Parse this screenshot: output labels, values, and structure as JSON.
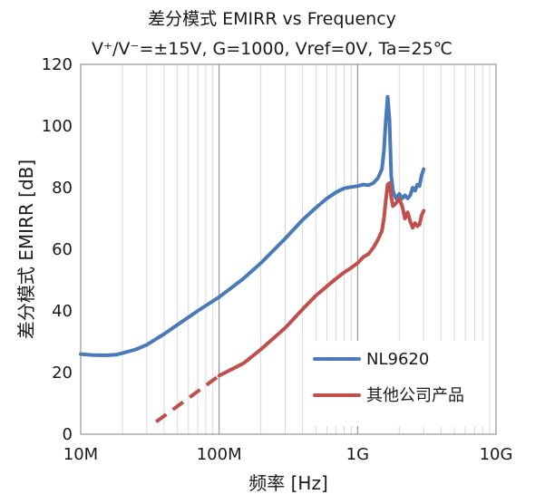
{
  "chart_data": {
    "type": "line",
    "title": "差分模式 EMIRR vs Frequency",
    "subtitle": "V⁺/V⁻=±15V, G=1000, Vref=0V, Ta=25℃",
    "xlabel": "频率 [Hz]",
    "ylabel": "差分模式 EMIRR [dB]",
    "xscale": "log",
    "xlim": [
      10000000,
      10000000000
    ],
    "ylim": [
      0,
      120
    ],
    "x_tick_labels": [
      "10M",
      "100M",
      "1G",
      "10G"
    ],
    "y_tick_labels": [
      "0",
      "20",
      "40",
      "60",
      "80",
      "100",
      "120"
    ],
    "grid": true,
    "legend_position": "bottom-right",
    "colors": {
      "series_1": "#4a7ab8",
      "series_2": "#c0504d",
      "grid_major": "#7f7f7f",
      "grid_minor": "#d9d9d9"
    },
    "series": [
      {
        "name": "NL9620",
        "style": "solid",
        "x": [
          10000000,
          12000000,
          15000000,
          18000000,
          20000000,
          25000000,
          30000000,
          40000000,
          50000000,
          70000000,
          100000000,
          150000000,
          200000000,
          300000000,
          400000000,
          500000000,
          600000000,
          700000000,
          800000000,
          900000000,
          1000000000,
          1100000000,
          1200000000,
          1300000000,
          1400000000,
          1500000000,
          1550000000,
          1600000000,
          1650000000,
          1700000000,
          1750000000,
          1800000000,
          1850000000,
          1900000000,
          2000000000,
          2100000000,
          2200000000,
          2300000000,
          2400000000,
          2500000000,
          2600000000,
          2700000000,
          2800000000,
          2900000000,
          3000000000
        ],
        "values": [
          26,
          25.7,
          25.6,
          25.8,
          26.3,
          27.5,
          29,
          32.5,
          35.5,
          40,
          44.5,
          50.5,
          55.5,
          63.5,
          69.5,
          73.5,
          76.5,
          78.5,
          79.8,
          80.2,
          80.5,
          81,
          80.8,
          81.5,
          83,
          86,
          92,
          102,
          109.5,
          102,
          84,
          79,
          77.5,
          76.5,
          78,
          76.5,
          77.5,
          76.5,
          77.5,
          80,
          79,
          81,
          80.5,
          84,
          86
        ]
      },
      {
        "name": "其他公司产品",
        "style": "solid",
        "x": [
          100000000,
          150000000,
          200000000,
          300000000,
          400000000,
          500000000,
          600000000,
          700000000,
          800000000,
          900000000,
          1000000000,
          1100000000,
          1200000000,
          1300000000,
          1400000000,
          1500000000,
          1550000000,
          1600000000,
          1650000000,
          1700000000,
          1750000000,
          1800000000,
          1900000000,
          2000000000,
          2100000000,
          2200000000,
          2300000000,
          2400000000,
          2500000000,
          2600000000,
          2700000000,
          2800000000,
          2900000000,
          3000000000
        ],
        "values": [
          19,
          23,
          27.5,
          34.5,
          40.5,
          45,
          48,
          50.5,
          52.5,
          54,
          55.5,
          57.5,
          58.5,
          60.5,
          63,
          66,
          70,
          76,
          81,
          81.5,
          77,
          74,
          75,
          76.5,
          74,
          70,
          72,
          69,
          67,
          68.5,
          67.5,
          68,
          71,
          72.5
        ]
      },
      {
        "name": "",
        "style": "dashed",
        "color_key": "series_2",
        "x": [
          35000000,
          100000000
        ],
        "values": [
          4,
          19
        ]
      }
    ]
  },
  "legend": [
    {
      "label": "NL9620",
      "color": "#4a7ab8"
    },
    {
      "label": "其他公司产品",
      "color": "#c0504d"
    }
  ]
}
